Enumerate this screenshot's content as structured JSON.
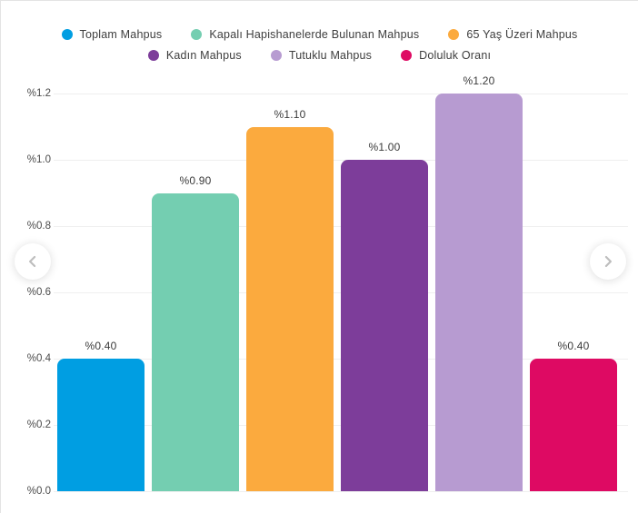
{
  "chart_data": {
    "type": "bar",
    "categories": [
      "Toplam Mahpus",
      "Kapalı Hapishanelerde Bulunan Mahpus",
      "65 Yaş Üzeri Mahpus",
      "Kadın Mahpus",
      "Tutuklu Mahpus",
      "Doluluk Oranı"
    ],
    "values": [
      0.4,
      0.9,
      1.1,
      1.0,
      1.2,
      0.4
    ],
    "value_labels": [
      "%0.40",
      "%0.90",
      "%1.10",
      "%1.00",
      "%1.20",
      "%0.40"
    ],
    "colors": [
      "#009ee2",
      "#74ceb1",
      "#fbaa3e",
      "#7d3d9a",
      "#b79bd1",
      "#de0a63"
    ],
    "title": "",
    "xlabel": "",
    "ylabel": "",
    "ylim": [
      0,
      1.2
    ],
    "yticks": [
      {
        "value": 1.2,
        "label": "%1.2"
      },
      {
        "value": 1.0,
        "label": "%1.0"
      },
      {
        "value": 0.8,
        "label": "%0.8"
      },
      {
        "value": 0.6,
        "label": "%0.6"
      },
      {
        "value": 0.4,
        "label": "%0.4"
      },
      {
        "value": 0.2,
        "label": "%0.2"
      },
      {
        "value": 0.0,
        "label": "%0.0"
      }
    ],
    "grid": true,
    "legend_position": "top",
    "legend_rows": [
      [
        0,
        1,
        2
      ],
      [
        3,
        4,
        5
      ]
    ]
  },
  "carousel": {
    "prev_icon": "chevron-left",
    "next_icon": "chevron-right"
  }
}
